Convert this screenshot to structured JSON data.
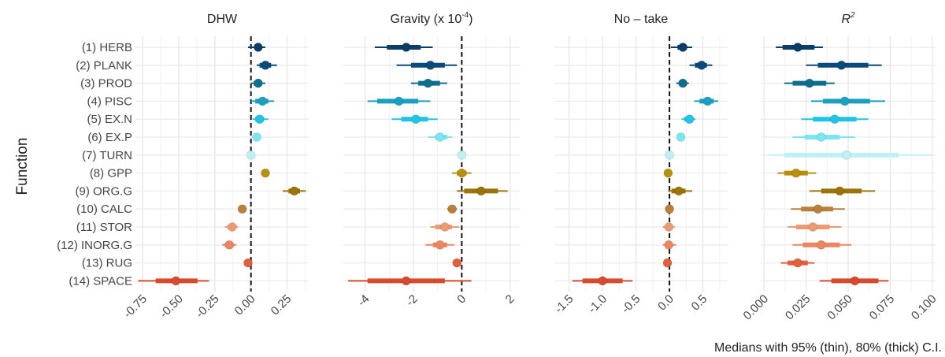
{
  "ylabel": "Function",
  "caption": "Medians with 95% (thin), 80% (thick) C.I.",
  "functions": [
    "(1) HERB",
    "(2) PLANK",
    "(3) PROD",
    "(4) PISC",
    "(5) EX.N",
    "(6) EX.P",
    "(7) TURN",
    "(8) GPP",
    "(9) ORG.G",
    "(10) CALC",
    "(11) STOR",
    "(12) INORG.G",
    "(13) RUG",
    "(14) SPACE"
  ],
  "colors": [
    "#0b3d66",
    "#0b4a7a",
    "#0d6f8c",
    "#1aa0bf",
    "#22c4e6",
    "#7ae6f2",
    "#bff0f6",
    "#b8900f",
    "#9a7408",
    "#b8803a",
    "#ec9a72",
    "#ec8562",
    "#e0603a",
    "#d84a2e"
  ],
  "chart_data": [
    {
      "type": "interval",
      "title": "DHW",
      "xlim": [
        -0.8,
        0.4
      ],
      "ticks": [
        -0.75,
        -0.5,
        -0.25,
        0.0,
        0.25
      ],
      "tick_labels": [
        "-0.75",
        "-0.50",
        "-0.25",
        "0.00",
        "0.25"
      ],
      "zero_line": 0,
      "points": [
        {
          "m": 0.05,
          "i80": [
            0.03,
            0.07
          ],
          "i95": [
            -0.02,
            0.1
          ]
        },
        {
          "m": 0.1,
          "i80": [
            0.06,
            0.14
          ],
          "i95": [
            0.04,
            0.18
          ]
        },
        {
          "m": 0.05,
          "i80": [
            0.02,
            0.07
          ],
          "i95": [
            0.0,
            0.1
          ]
        },
        {
          "m": 0.08,
          "i80": [
            0.03,
            0.12
          ],
          "i95": [
            0.0,
            0.16
          ]
        },
        {
          "m": 0.06,
          "i80": [
            0.03,
            0.09
          ],
          "i95": [
            0.01,
            0.12
          ]
        },
        {
          "m": 0.04,
          "i80": [
            0.04,
            0.04
          ],
          "i95": [
            0.04,
            0.04
          ]
        },
        {
          "m": 0.0,
          "i80": [
            0.0,
            0.0
          ],
          "i95": [
            0.0,
            0.0
          ]
        },
        {
          "m": 0.1,
          "i80": [
            0.1,
            0.1
          ],
          "i95": [
            0.1,
            0.1
          ]
        },
        {
          "m": 0.3,
          "i80": [
            0.26,
            0.34
          ],
          "i95": [
            0.22,
            0.38
          ]
        },
        {
          "m": -0.06,
          "i80": [
            -0.06,
            -0.06
          ],
          "i95": [
            -0.06,
            -0.06
          ]
        },
        {
          "m": -0.13,
          "i80": [
            -0.16,
            -0.11
          ],
          "i95": [
            -0.18,
            -0.09
          ]
        },
        {
          "m": -0.15,
          "i80": [
            -0.18,
            -0.12
          ],
          "i95": [
            -0.2,
            -0.1
          ]
        },
        {
          "m": -0.02,
          "i80": [
            -0.02,
            -0.02
          ],
          "i95": [
            -0.02,
            -0.02
          ]
        },
        {
          "m": -0.52,
          "i80": [
            -0.66,
            -0.37
          ],
          "i95": [
            -0.78,
            -0.29
          ]
        }
      ]
    },
    {
      "type": "interval",
      "title": "Gravity (x 10",
      "title_sup": "-4",
      "title_end": ")",
      "xlim": [
        -4.9,
        2.4
      ],
      "ticks": [
        -4,
        -2,
        0,
        2
      ],
      "tick_labels": [
        "-4",
        "-2",
        "0",
        "2"
      ],
      "zero_line": 0,
      "points": [
        {
          "m": -2.3,
          "i80": [
            -3.1,
            -1.7
          ],
          "i95": [
            -3.6,
            -1.2
          ]
        },
        {
          "m": -1.3,
          "i80": [
            -2.1,
            -0.7
          ],
          "i95": [
            -2.7,
            -0.2
          ]
        },
        {
          "m": -1.4,
          "i80": [
            -1.8,
            -0.9
          ],
          "i95": [
            -2.1,
            -0.6
          ]
        },
        {
          "m": -2.6,
          "i80": [
            -3.5,
            -1.8
          ],
          "i95": [
            -3.9,
            -1.3
          ]
        },
        {
          "m": -1.9,
          "i80": [
            -2.5,
            -1.4
          ],
          "i95": [
            -2.9,
            -1.0
          ]
        },
        {
          "m": -0.9,
          "i80": [
            -1.1,
            -0.6
          ],
          "i95": [
            -1.4,
            -0.4
          ]
        },
        {
          "m": 0.0,
          "i80": [
            0.0,
            0.0
          ],
          "i95": [
            0.0,
            0.0
          ]
        },
        {
          "m": 0.0,
          "i80": [
            -0.2,
            0.2
          ],
          "i95": [
            -0.4,
            0.4
          ]
        },
        {
          "m": 0.8,
          "i80": [
            0.1,
            1.5
          ],
          "i95": [
            -0.2,
            1.9
          ]
        },
        {
          "m": -0.4,
          "i80": [
            -0.5,
            -0.3
          ],
          "i95": [
            -0.6,
            -0.2
          ]
        },
        {
          "m": -0.7,
          "i80": [
            -1.1,
            -0.4
          ],
          "i95": [
            -1.3,
            -0.1
          ]
        },
        {
          "m": -0.9,
          "i80": [
            -1.2,
            -0.6
          ],
          "i95": [
            -1.5,
            -0.3
          ]
        },
        {
          "m": -0.2,
          "i80": [
            -0.2,
            -0.2
          ],
          "i95": [
            -0.2,
            -0.2
          ]
        },
        {
          "m": -2.3,
          "i80": [
            -3.9,
            -0.7
          ],
          "i95": [
            -4.7,
            0.4
          ]
        }
      ]
    },
    {
      "type": "interval",
      "title": "No – take",
      "xlim": [
        -1.72,
        0.87
      ],
      "ticks": [
        -1.5,
        -1.0,
        -0.5,
        0.0,
        0.5
      ],
      "tick_labels": [
        "-1.5",
        "-1.0",
        "-0.5",
        "0.0",
        "0.5"
      ],
      "zero_line": 0,
      "points": [
        {
          "m": 0.2,
          "i80": [
            0.12,
            0.26
          ],
          "i95": [
            0.02,
            0.34
          ]
        },
        {
          "m": 0.48,
          "i80": [
            0.38,
            0.56
          ],
          "i95": [
            0.3,
            0.64
          ]
        },
        {
          "m": 0.2,
          "i80": [
            0.15,
            0.24
          ],
          "i95": [
            0.1,
            0.29
          ]
        },
        {
          "m": 0.57,
          "i80": [
            0.45,
            0.66
          ],
          "i95": [
            0.37,
            0.73
          ]
        },
        {
          "m": 0.3,
          "i80": [
            0.22,
            0.35
          ],
          "i95": [
            0.18,
            0.39
          ]
        },
        {
          "m": 0.17,
          "i80": [
            0.17,
            0.17
          ],
          "i95": [
            0.17,
            0.17
          ]
        },
        {
          "m": 0.0,
          "i80": [
            0.0,
            0.0
          ],
          "i95": [
            0.0,
            0.0
          ]
        },
        {
          "m": -0.02,
          "i80": [
            -0.02,
            -0.02
          ],
          "i95": [
            -0.02,
            -0.02
          ]
        },
        {
          "m": 0.14,
          "i80": [
            0.03,
            0.24
          ],
          "i95": [
            -0.02,
            0.34
          ]
        },
        {
          "m": 0.0,
          "i80": [
            0.0,
            0.0
          ],
          "i95": [
            0.0,
            0.0
          ]
        },
        {
          "m": -0.01,
          "i80": [
            -0.06,
            0.04
          ],
          "i95": [
            -0.1,
            0.08
          ]
        },
        {
          "m": -0.01,
          "i80": [
            -0.06,
            0.04
          ],
          "i95": [
            -0.1,
            0.1
          ]
        },
        {
          "m": -0.03,
          "i80": [
            -0.03,
            -0.03
          ],
          "i95": [
            -0.03,
            -0.03
          ]
        },
        {
          "m": -1.0,
          "i80": [
            -1.3,
            -0.7
          ],
          "i95": [
            -1.45,
            -0.55
          ]
        }
      ]
    },
    {
      "type": "interval",
      "title": "R",
      "title_sup": "2",
      "title_italic": true,
      "xlim": [
        -0.002,
        0.102
      ],
      "ticks": [
        0.0,
        0.025,
        0.05,
        0.075,
        0.1
      ],
      "tick_labels": [
        "0.000",
        "0.025",
        "0.050",
        "0.075",
        "0.100"
      ],
      "zero_line": null,
      "points": [
        {
          "m": 0.02,
          "i80": [
            0.011,
            0.03
          ],
          "i95": [
            0.007,
            0.035
          ]
        },
        {
          "m": 0.046,
          "i80": [
            0.032,
            0.062
          ],
          "i95": [
            0.025,
            0.07
          ]
        },
        {
          "m": 0.027,
          "i80": [
            0.017,
            0.037
          ],
          "i95": [
            0.012,
            0.042
          ]
        },
        {
          "m": 0.048,
          "i80": [
            0.035,
            0.063
          ],
          "i95": [
            0.028,
            0.072
          ]
        },
        {
          "m": 0.042,
          "i80": [
            0.029,
            0.055
          ],
          "i95": [
            0.022,
            0.062
          ]
        },
        {
          "m": 0.034,
          "i80": [
            0.024,
            0.045
          ],
          "i95": [
            0.017,
            0.054
          ]
        },
        {
          "m": 0.049,
          "i80": [
            0.012,
            0.08
          ],
          "i95": [
            0.003,
            0.1
          ]
        },
        {
          "m": 0.019,
          "i80": [
            0.012,
            0.026
          ],
          "i95": [
            0.008,
            0.031
          ]
        },
        {
          "m": 0.045,
          "i80": [
            0.034,
            0.058
          ],
          "i95": [
            0.027,
            0.066
          ]
        },
        {
          "m": 0.032,
          "i80": [
            0.022,
            0.041
          ],
          "i95": [
            0.016,
            0.048
          ]
        },
        {
          "m": 0.029,
          "i80": [
            0.019,
            0.039
          ],
          "i95": [
            0.014,
            0.046
          ]
        },
        {
          "m": 0.034,
          "i80": [
            0.023,
            0.045
          ],
          "i95": [
            0.017,
            0.052
          ]
        },
        {
          "m": 0.02,
          "i80": [
            0.014,
            0.026
          ],
          "i95": [
            0.01,
            0.03
          ]
        },
        {
          "m": 0.054,
          "i80": [
            0.04,
            0.068
          ],
          "i95": [
            0.033,
            0.074
          ]
        }
      ]
    }
  ]
}
